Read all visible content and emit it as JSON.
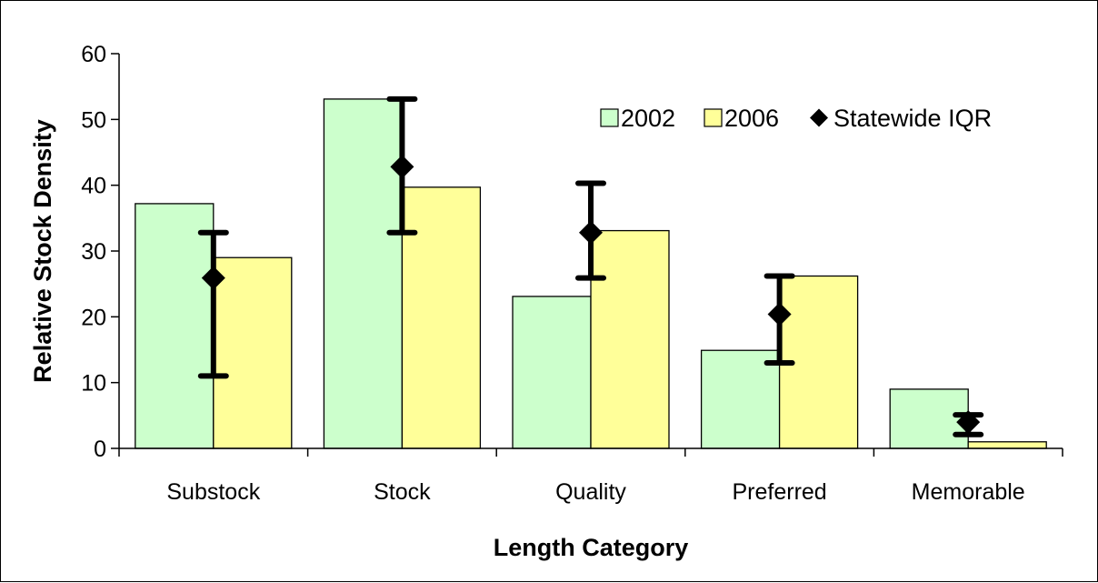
{
  "chart_data": {
    "type": "bar",
    "title": "",
    "xlabel": "Length Category",
    "ylabel": "Relative Stock Density",
    "categories": [
      "Substock",
      "Stock",
      "Quality",
      "Preferred",
      "Memorable"
    ],
    "ylim": [
      0,
      60
    ],
    "yticks": [
      0,
      10,
      20,
      30,
      40,
      50,
      60
    ],
    "grid": false,
    "legend_position": "top-right",
    "series": [
      {
        "name": "2002",
        "values": [
          37.2,
          53.1,
          23.1,
          14.9,
          9.0
        ],
        "color": "#ccffcc"
      },
      {
        "name": "2006",
        "values": [
          29.0,
          39.7,
          33.1,
          26.2,
          1.0
        ],
        "color": "#ffff99"
      }
    ],
    "iqr": {
      "name": "Statewide IQR",
      "median": [
        25.9,
        42.8,
        32.8,
        20.4,
        4.0
      ],
      "low": [
        11.0,
        32.8,
        25.9,
        13.0,
        2.1
      ],
      "high": [
        32.8,
        53.1,
        40.3,
        26.2,
        5.1
      ],
      "color": "#000000"
    }
  }
}
